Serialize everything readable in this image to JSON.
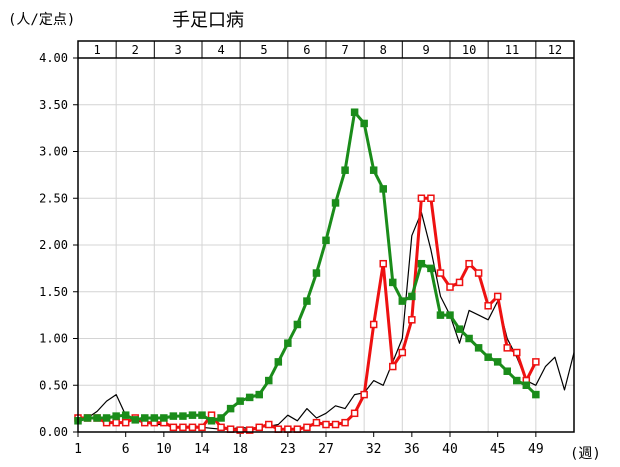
{
  "chart_data": {
    "type": "line",
    "title": "手足口病",
    "ylabel": "(人/定点)",
    "xlabel": "(週)",
    "ylim": [
      0,
      4.0
    ],
    "xlim": [
      1,
      53
    ],
    "grid": true,
    "legend": "none",
    "months": [
      "1",
      "2",
      "3",
      "4",
      "5",
      "6",
      "7",
      "8",
      "9",
      "10",
      "11",
      "12"
    ],
    "month_start_weeks": [
      1,
      5,
      9,
      14,
      18,
      23,
      27,
      31,
      35,
      40,
      44,
      49
    ],
    "y_ticks": [
      "0.00",
      "0.50",
      "1.00",
      "1.50",
      "2.00",
      "2.50",
      "3.00",
      "3.50",
      "4.00"
    ],
    "y_tick_values": [
      0,
      0.5,
      1.0,
      1.5,
      2.0,
      2.5,
      3.0,
      3.5,
      4.0
    ],
    "x_ticks": [
      "1",
      "6",
      "10",
      "14",
      "18",
      "23",
      "27",
      "32",
      "36",
      "40",
      "45",
      "49"
    ],
    "x_tick_values": [
      1,
      6,
      10,
      14,
      18,
      23,
      27,
      32,
      36,
      40,
      45,
      49
    ],
    "series": [
      {
        "color": "#000000",
        "marker": "none",
        "x": [
          1,
          2,
          3,
          4,
          5,
          6,
          7,
          8,
          9,
          10,
          11,
          12,
          13,
          14,
          15,
          16,
          17,
          18,
          19,
          20,
          21,
          22,
          23,
          24,
          25,
          26,
          27,
          28,
          29,
          30,
          31,
          32,
          33,
          34,
          35,
          36,
          37,
          38,
          39,
          40,
          41,
          42,
          43,
          44,
          45,
          46,
          47,
          48,
          49,
          50,
          51,
          52,
          53
        ],
        "values": [
          0.12,
          0.15,
          0.22,
          0.33,
          0.4,
          0.18,
          0.12,
          0.1,
          0.08,
          0.08,
          0.06,
          0.05,
          0.07,
          0.05,
          0.04,
          0.03,
          0.03,
          0.05,
          0.04,
          0.05,
          0.06,
          0.08,
          0.18,
          0.12,
          0.25,
          0.15,
          0.2,
          0.28,
          0.25,
          0.4,
          0.42,
          0.55,
          0.5,
          0.75,
          1.0,
          2.1,
          2.35,
          1.95,
          1.45,
          1.25,
          0.95,
          1.3,
          1.25,
          1.2,
          1.4,
          1.0,
          0.8,
          0.55,
          0.5,
          0.7,
          0.8,
          0.45,
          0.85
        ]
      },
      {
        "color": "#ee1111",
        "marker": "square-open",
        "x": [
          1,
          2,
          3,
          4,
          5,
          6,
          7,
          8,
          9,
          10,
          11,
          12,
          13,
          14,
          15,
          16,
          17,
          18,
          19,
          20,
          21,
          22,
          23,
          24,
          25,
          26,
          27,
          28,
          29,
          30,
          31,
          32,
          33,
          34,
          35,
          36,
          37,
          38,
          39,
          40,
          41,
          42,
          43,
          44,
          45,
          46,
          47,
          48,
          49
        ],
        "values": [
          0.15,
          0.15,
          0.15,
          0.1,
          0.1,
          0.1,
          0.15,
          0.1,
          0.1,
          0.1,
          0.05,
          0.05,
          0.05,
          0.05,
          0.18,
          0.05,
          0.03,
          0.02,
          0.02,
          0.05,
          0.08,
          0.03,
          0.03,
          0.03,
          0.05,
          0.1,
          0.08,
          0.08,
          0.1,
          0.2,
          0.4,
          1.15,
          1.8,
          0.7,
          0.85,
          1.2,
          2.5,
          2.5,
          1.7,
          1.55,
          1.6,
          1.8,
          1.7,
          1.35,
          1.45,
          0.9,
          0.85,
          0.55,
          0.75
        ]
      },
      {
        "color": "#1a8c1a",
        "marker": "square-filled",
        "x": [
          1,
          2,
          3,
          4,
          5,
          6,
          7,
          8,
          9,
          10,
          11,
          12,
          13,
          14,
          15,
          16,
          17,
          18,
          19,
          20,
          21,
          22,
          23,
          24,
          25,
          26,
          27,
          28,
          29,
          30,
          31,
          32,
          33,
          34,
          35,
          36,
          37,
          38,
          39,
          40,
          41,
          42,
          43,
          44,
          45,
          46,
          47,
          48,
          49
        ],
        "values": [
          0.12,
          0.15,
          0.15,
          0.15,
          0.17,
          0.18,
          0.13,
          0.15,
          0.15,
          0.15,
          0.17,
          0.17,
          0.18,
          0.18,
          0.12,
          0.15,
          0.25,
          0.33,
          0.37,
          0.4,
          0.55,
          0.75,
          0.95,
          1.15,
          1.4,
          1.7,
          2.05,
          2.45,
          2.8,
          3.42,
          3.3,
          2.8,
          2.6,
          1.6,
          1.4,
          1.45,
          1.8,
          1.75,
          1.25,
          1.25,
          1.1,
          1.0,
          0.9,
          0.8,
          0.75,
          0.65,
          0.55,
          0.5,
          0.4
        ]
      }
    ]
  }
}
